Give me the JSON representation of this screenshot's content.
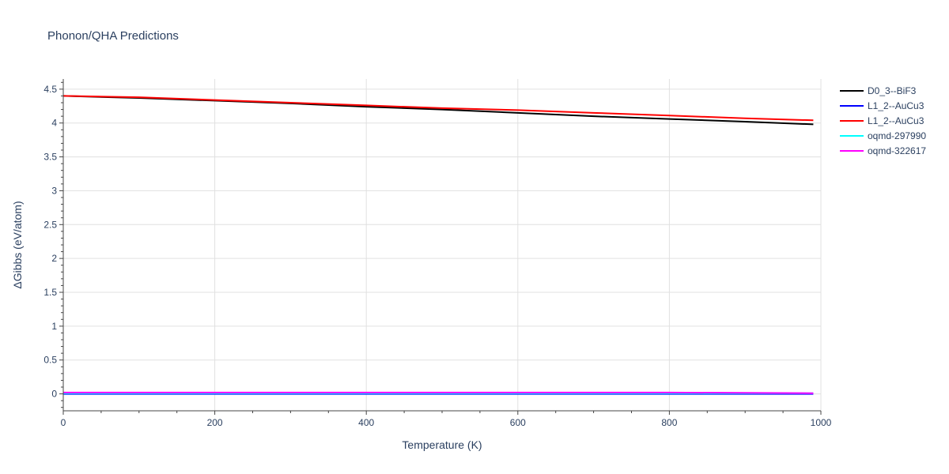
{
  "chart_data": {
    "type": "line",
    "title": "Phonon/QHA Predictions",
    "xlabel": "Temperature (K)",
    "ylabel": "ΔGibbs (eV/atom)",
    "xlim": [
      0,
      1000
    ],
    "ylim": [
      -0.25,
      4.65
    ],
    "x_ticks": [
      0,
      200,
      400,
      600,
      800,
      1000
    ],
    "x_tick_labels": [
      "0",
      "200",
      "400",
      "600",
      "800",
      "1000"
    ],
    "y_ticks": [
      0,
      0.5,
      1,
      1.5,
      2,
      2.5,
      3,
      3.5,
      4,
      4.5
    ],
    "y_tick_labels": [
      "0",
      "0.5",
      "1",
      "1.5",
      "2",
      "2.5",
      "3",
      "3.5",
      "4",
      "4.5"
    ],
    "grid": true,
    "legend_position": "top-right outside",
    "series": [
      {
        "name": "D0_3--BiF3",
        "color": "#000000",
        "x": [
          0,
          100,
          200,
          300,
          400,
          500,
          600,
          700,
          800,
          900,
          990
        ],
        "y": [
          4.4,
          4.37,
          4.33,
          4.29,
          4.24,
          4.2,
          4.15,
          4.1,
          4.06,
          4.02,
          3.98
        ]
      },
      {
        "name": "L1_2--AuCu3",
        "color": "#0000ff",
        "x": [
          0,
          200,
          400,
          600,
          800,
          990
        ],
        "y": [
          0.0,
          0.0,
          0.0,
          0.0,
          0.0,
          0.0
        ]
      },
      {
        "name": "L1_2--AuCu3",
        "color": "#ff0000",
        "x": [
          0,
          100,
          200,
          300,
          400,
          500,
          600,
          700,
          800,
          900,
          990
        ],
        "y": [
          4.4,
          4.38,
          4.34,
          4.3,
          4.26,
          4.22,
          4.19,
          4.15,
          4.11,
          4.07,
          4.04
        ]
      },
      {
        "name": "oqmd-297990",
        "color": "#00ffff",
        "x": [
          0,
          200,
          400,
          600,
          800,
          990
        ],
        "y": [
          0.01,
          0.01,
          0.01,
          0.01,
          0.01,
          0.01
        ]
      },
      {
        "name": "oqmd-322617",
        "color": "#ff00ff",
        "x": [
          0,
          200,
          400,
          600,
          800,
          990
        ],
        "y": [
          0.02,
          0.02,
          0.02,
          0.02,
          0.02,
          0.01
        ]
      }
    ]
  }
}
